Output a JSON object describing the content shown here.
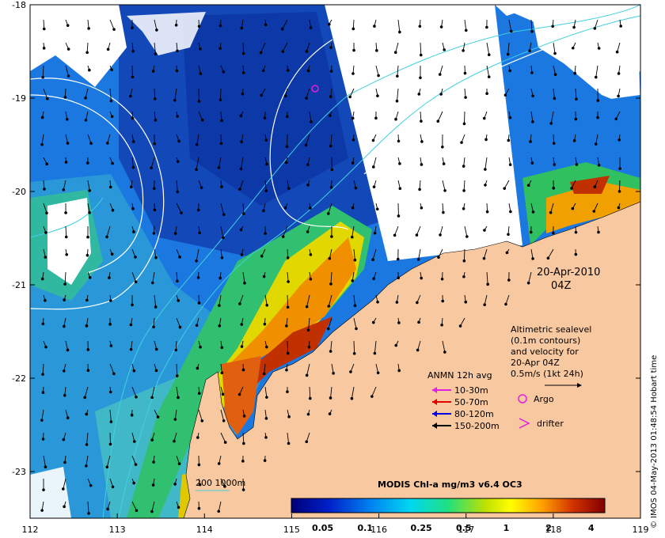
{
  "chart_data": {
    "type": "heatmap",
    "title": "MODIS Chl-a mg/m3 v6.4 OC3",
    "x_ticks": [
      "112",
      "113",
      "114",
      "115",
      "116",
      "117",
      "118",
      "119"
    ],
    "y_ticks": [
      "-18",
      "-19",
      "-20",
      "-21",
      "-22",
      "-23"
    ],
    "xlim": [
      112,
      119
    ],
    "ylim": [
      -23.5,
      -18
    ],
    "colorbar": {
      "ticks": [
        "0.05",
        "0.1",
        "0.25",
        "0.5",
        "1",
        "2",
        "4"
      ],
      "range": [
        0.03,
        5
      ],
      "scale": "log"
    }
  },
  "annotations": {
    "date_line1": "20-Apr-2010",
    "date_line2": "04Z",
    "altimetry": [
      "Altimetric sealevel",
      "(0.1m contours)",
      "and velocity for",
      "20-Apr 04Z",
      "0.5m/s (1kt 24h)"
    ],
    "anmn_title": "ANMN 12h avg",
    "anmn_items": [
      {
        "label": "10-30m",
        "color": "#e020e0"
      },
      {
        "label": "50-70m",
        "color": "#e00000"
      },
      {
        "label": "80-120m",
        "color": "#0000e0"
      },
      {
        "label": "150-200m",
        "color": "#000000"
      }
    ],
    "argo_label": "Argo",
    "drifter_label": "drifter",
    "bathy_label": "200  1000m",
    "credit": "© IMOS 04-May-2013 01:48:54 Hobart time"
  },
  "colors": {
    "land": "#f8c8a0",
    "argo": "#e020e0",
    "contour": "#ffffff",
    "bathymetry": "#40d0e0"
  }
}
